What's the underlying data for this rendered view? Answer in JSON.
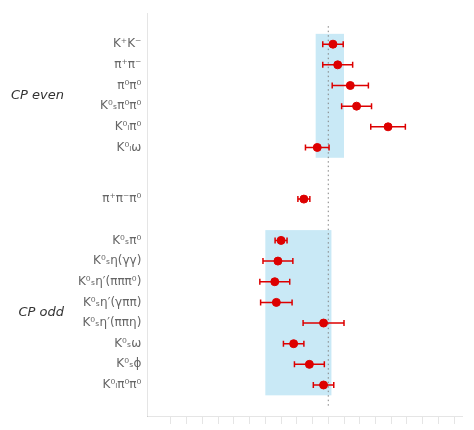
{
  "chart_data": {
    "type": "scatter",
    "x": [
      1.03,
      1.06,
      1.14,
      1.18,
      1.38,
      0.93,
      0.845,
      0.7,
      0.68,
      0.66,
      0.67,
      0.97,
      0.78,
      0.88,
      0.97
    ],
    "values": [
      16,
      15,
      14,
      13,
      12,
      11,
      8.5,
      6.5,
      5.5,
      4.5,
      3.5,
      2.5,
      1.5,
      0.5,
      -0.5
    ],
    "xerr": [
      0.065,
      0.095,
      0.115,
      0.095,
      0.11,
      0.075,
      0.038,
      0.038,
      0.095,
      0.095,
      0.1,
      0.13,
      0.065,
      0.095,
      0.065
    ],
    "color": "#dd0000",
    "marker": "circle",
    "xlim": [
      -0.15,
      1.85
    ],
    "xticks": [
      0.0,
      0.1,
      0.2,
      0.3,
      0.4,
      0.5,
      0.6,
      0.7,
      0.8,
      0.9,
      1.0,
      1.1,
      1.2,
      1.3,
      1.4,
      1.5,
      1.6,
      1.7,
      1.8
    ],
    "ylim": [
      -2.0,
      17.5
    ],
    "yticks": [
      {
        "value": 16,
        "label": "K⁺K⁻"
      },
      {
        "value": 15,
        "label": "π⁺π⁻"
      },
      {
        "value": 14,
        "label": "π⁰π⁰"
      },
      {
        "value": 13,
        "label": "K⁰ₛπ⁰π⁰"
      },
      {
        "value": 12,
        "label": "K⁰ₗπ⁰"
      },
      {
        "value": 11,
        "label": "K⁰ₗω"
      },
      {
        "value": 8.5,
        "label": "π⁺π⁻π⁰"
      },
      {
        "value": 6.5,
        "label": "K⁰ₛπ⁰"
      },
      {
        "value": 5.5,
        "label": "K⁰ₛη(γγ)"
      },
      {
        "value": 4.5,
        "label": "K⁰ₛη′(πππ⁰)"
      },
      {
        "value": 3.5,
        "label": "K⁰ₛη′(γππ)"
      },
      {
        "value": 2.5,
        "label": "K⁰ₛη′(ππη)"
      },
      {
        "value": 1.5,
        "label": "K⁰ₛω"
      },
      {
        "value": 0.5,
        "label": "K⁰ₛϕ"
      },
      {
        "value": -0.5,
        "label": "K⁰ₗπ⁰π⁰"
      }
    ],
    "tick_labels": "y",
    "grid": false,
    "annotations": [
      {
        "type": "band",
        "x0": 0.92,
        "x1": 1.1,
        "y0": 10.5,
        "y1": 16.5,
        "color": "#87ceeb"
      },
      {
        "type": "band",
        "x0": 0.6,
        "x1": 1.02,
        "y0": -1.0,
        "y1": 7.0,
        "color": "#87ceeb"
      },
      {
        "type": "vline",
        "x": 1.0,
        "y0": -1.5,
        "y1": 17.0,
        "color": "gray",
        "line_style": "dotted"
      },
      {
        "type": "text",
        "text": "CP even",
        "y": 13.5
      },
      {
        "type": "text",
        "text": "CP odd",
        "y": 3.0
      }
    ]
  }
}
